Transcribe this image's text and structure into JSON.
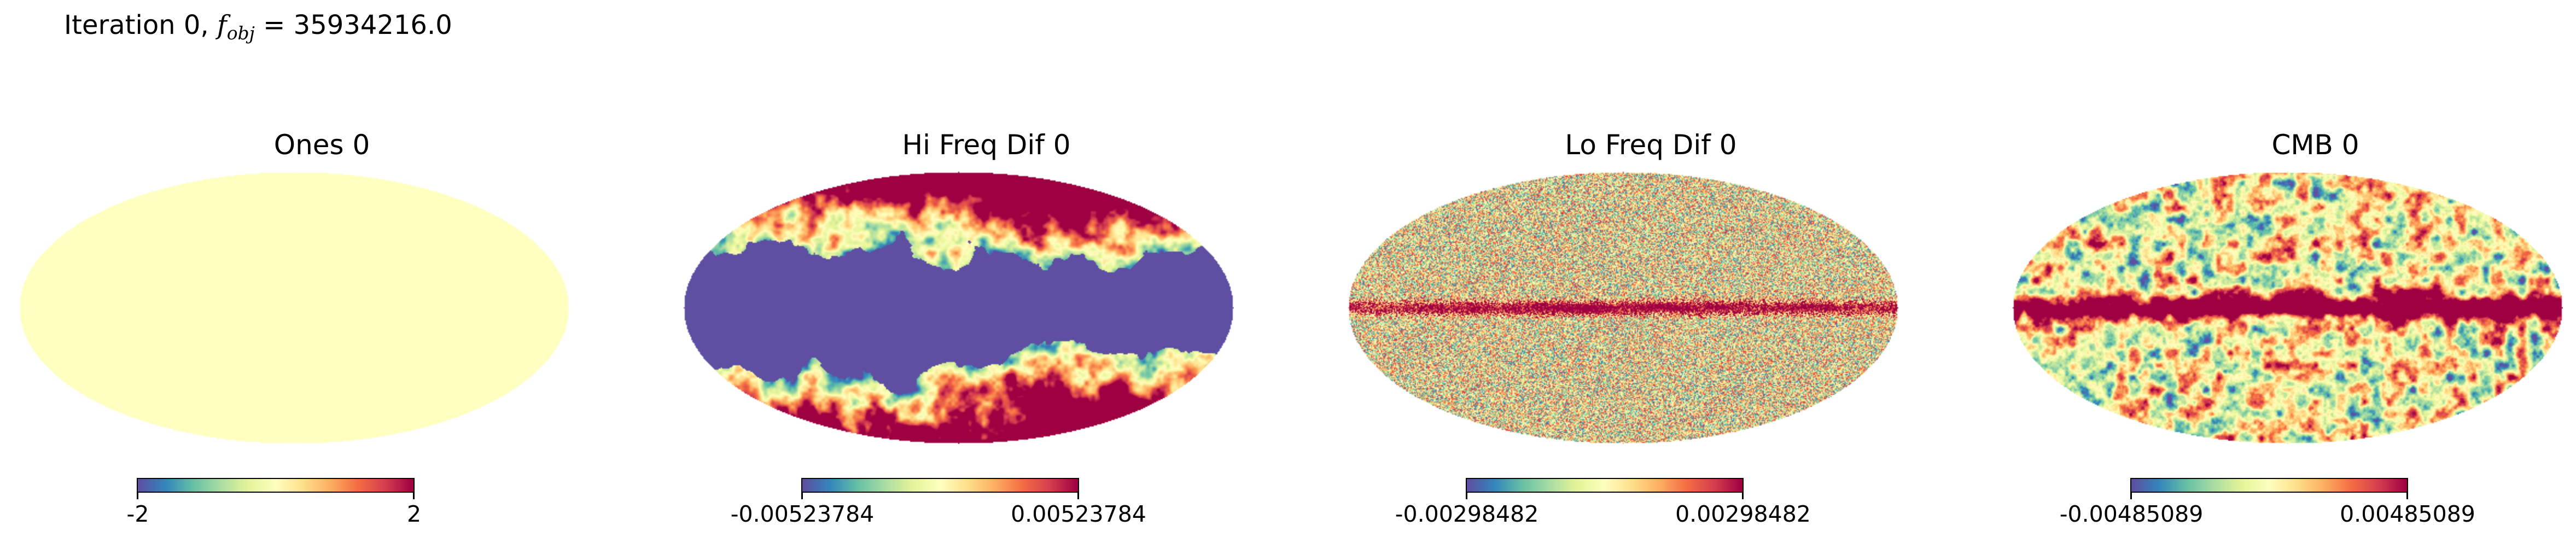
{
  "figure": {
    "suptitle_prefix": "Iteration 0, ",
    "suptitle_f": "f",
    "suptitle_sub": "obj",
    "suptitle_value": " = 35934216.0"
  },
  "colormap": [
    "#5e4fa2",
    "#3288bd",
    "#66c2a5",
    "#abdda4",
    "#e6f598",
    "#ffffbf",
    "#fee08b",
    "#fdae61",
    "#f46d43",
    "#d53e4f",
    "#9e0142"
  ],
  "panels": [
    {
      "title": "Ones 0",
      "cbar_min": "-2",
      "cbar_max": "2",
      "pattern": "uniform"
    },
    {
      "title": "Hi Freq Dif 0",
      "cbar_min": "-0.00523784",
      "cbar_max": "0.00523784",
      "pattern": "dust-saturated"
    },
    {
      "title": "Lo Freq Dif 0",
      "cbar_min": "-0.00298482",
      "cbar_max": "0.00298482",
      "pattern": "noise-with-galactic-plane"
    },
    {
      "title": "CMB 0",
      "cbar_min": "-0.00485089",
      "cbar_max": "0.00485089",
      "pattern": "cmb-with-galactic-plane"
    }
  ]
}
